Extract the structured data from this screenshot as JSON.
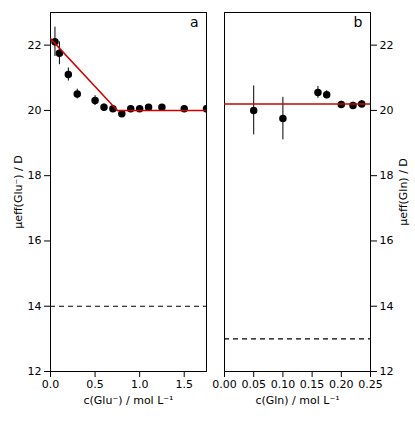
{
  "chart_data": [
    {
      "type": "scatter",
      "annotations": [
        "a"
      ],
      "xlabel": "c(Glu⁻) / mol L⁻¹",
      "ylabel": "μeff(Glu⁻) / D",
      "xlim": [
        0.0,
        1.75
      ],
      "ylim": [
        12.0,
        23.0
      ],
      "xticks": [
        {
          "value": 0.0,
          "label": "0.0"
        },
        0.5,
        {
          "value": 1.0,
          "label": "1.0"
        },
        1.5
      ],
      "yticks": [
        12,
        14,
        16,
        18,
        20,
        22
      ],
      "series": [
        {
          "type": "scatter",
          "marker": "circle",
          "color": "#000000",
          "x": [
            0.05,
            0.1,
            0.2,
            0.3,
            0.5,
            0.6,
            0.7,
            0.8,
            0.9,
            1.0,
            1.1,
            1.25,
            1.5,
            1.75
          ],
          "values": [
            22.1,
            21.75,
            21.1,
            20.5,
            20.3,
            20.1,
            20.05,
            19.9,
            20.05,
            20.05,
            20.1,
            20.1,
            20.05,
            20.05
          ],
          "yerr": [
            0.45,
            0.35,
            0.2,
            0.15,
            0.15,
            0.1,
            0.1,
            0.1,
            0.08,
            0.08,
            0.07,
            0.07,
            0.07,
            0.07
          ]
        },
        {
          "type": "line",
          "color": "#cc0000",
          "x": [
            0.0,
            0.75
          ],
          "values": [
            22.2,
            20.0
          ]
        },
        {
          "type": "line",
          "color": "#cc0000",
          "x": [
            0.75,
            1.75
          ],
          "values": [
            20.0,
            20.0
          ]
        },
        {
          "type": "hline",
          "color": "#000000",
          "line_style": "dashed",
          "values": [
            14.0
          ]
        }
      ]
    },
    {
      "type": "scatter",
      "annotations": [
        "b"
      ],
      "xlabel": "c(Gln) / mol L⁻¹",
      "ylabel": "μeff(Gln) / D",
      "xlim": [
        0.0,
        0.25
      ],
      "ylim": [
        12.0,
        23.0
      ],
      "xticks": [
        {
          "value": 0.0,
          "label": "0.00"
        },
        0.05,
        {
          "value": 0.1,
          "label": "0.10"
        },
        0.15,
        {
          "value": 0.2,
          "label": "0.20"
        },
        0.25
      ],
      "yticks": [
        12,
        14,
        16,
        18,
        20,
        22
      ],
      "series": [
        {
          "type": "scatter",
          "marker": "circle",
          "color": "#000000",
          "x": [
            0.05,
            0.1,
            0.16,
            0.175,
            0.2,
            0.22,
            0.235
          ],
          "values": [
            20.0,
            19.75,
            20.55,
            20.48,
            20.18,
            20.15,
            20.2
          ],
          "yerr": [
            0.75,
            0.65,
            0.18,
            0.12,
            0.1,
            0.1,
            0.1
          ]
        },
        {
          "type": "line",
          "color": "#cc0000",
          "x": [
            0.0,
            0.25
          ],
          "values": [
            20.2,
            20.2
          ]
        },
        {
          "type": "hline",
          "color": "#000000",
          "line_style": "dashed",
          "values": [
            13.0
          ]
        }
      ]
    }
  ]
}
